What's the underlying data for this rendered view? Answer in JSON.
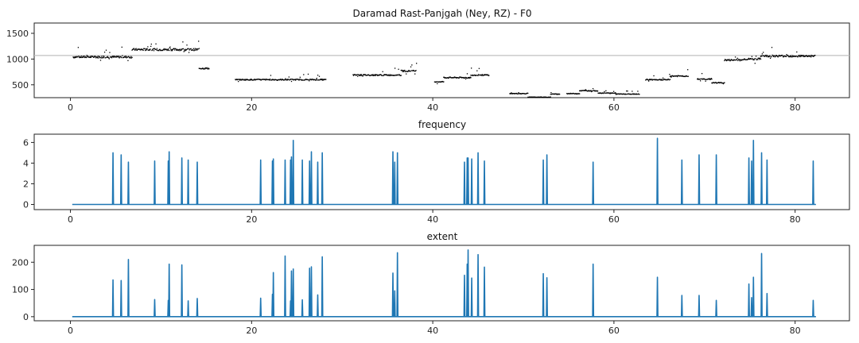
{
  "colors": {
    "series": "#1f77b4",
    "points": "#000000",
    "reference": "#c0c0c0"
  },
  "chart_data": [
    {
      "type": "scatter",
      "title": "Daramad Rast-Panjgah (Ney, RZ) - F0",
      "xlim": [
        -4,
        86
      ],
      "ylim": [
        250,
        1700
      ],
      "xticks": [
        0,
        20,
        40,
        60,
        80
      ],
      "yticks": [
        500,
        1000,
        1500
      ],
      "reference_line": 1070,
      "segments": [
        [
          0.3,
          6.8,
          1040
        ],
        [
          6.8,
          14.2,
          1185
        ],
        [
          14.2,
          15.3,
          820
        ],
        [
          18.2,
          28.2,
          600
        ],
        [
          31.2,
          36.5,
          690
        ],
        [
          36.5,
          38.2,
          770
        ],
        [
          40.2,
          41.2,
          560
        ],
        [
          41.2,
          44.2,
          640
        ],
        [
          44.2,
          46.2,
          690
        ],
        [
          48.5,
          50.5,
          330
        ],
        [
          50.5,
          53.0,
          260
        ],
        [
          53.0,
          54.0,
          320
        ],
        [
          54.8,
          56.2,
          330
        ],
        [
          56.2,
          58.2,
          385
        ],
        [
          58.2,
          60.2,
          340
        ],
        [
          60.2,
          62.8,
          320
        ],
        [
          63.5,
          66.2,
          600
        ],
        [
          66.2,
          68.2,
          670
        ],
        [
          69.2,
          70.8,
          610
        ],
        [
          70.8,
          72.2,
          540
        ],
        [
          72.2,
          74.2,
          980
        ],
        [
          74.2,
          76.2,
          1000
        ],
        [
          76.2,
          82.2,
          1060
        ]
      ]
    },
    {
      "type": "line",
      "title": "frequency",
      "xlim": [
        -4,
        86
      ],
      "ylim": [
        -0.5,
        6.8
      ],
      "xticks": [
        0,
        20,
        40,
        60,
        80
      ],
      "yticks": [
        0,
        2,
        4,
        6
      ],
      "x_range": [
        0.2,
        82.3
      ],
      "spikes": [
        [
          4.7,
          5.0
        ],
        [
          5.6,
          4.8
        ],
        [
          6.4,
          4.1
        ],
        [
          9.3,
          4.2
        ],
        [
          10.8,
          4.2
        ],
        [
          10.9,
          5.1
        ],
        [
          12.3,
          4.5
        ],
        [
          13.0,
          4.3
        ],
        [
          14.0,
          4.1
        ],
        [
          21.0,
          4.3
        ],
        [
          22.3,
          4.2
        ],
        [
          22.4,
          4.4
        ],
        [
          23.7,
          4.3
        ],
        [
          24.3,
          4.3
        ],
        [
          24.4,
          4.6
        ],
        [
          24.6,
          6.2
        ],
        [
          25.6,
          4.3
        ],
        [
          26.4,
          4.2
        ],
        [
          26.6,
          5.1
        ],
        [
          27.3,
          4.1
        ],
        [
          27.8,
          5.0
        ],
        [
          35.6,
          5.1
        ],
        [
          35.8,
          4.1
        ],
        [
          36.1,
          5.0
        ],
        [
          43.5,
          4.1
        ],
        [
          43.8,
          4.5
        ],
        [
          43.9,
          4.5
        ],
        [
          44.3,
          4.4
        ],
        [
          45.0,
          5.0
        ],
        [
          45.7,
          4.2
        ],
        [
          52.2,
          4.3
        ],
        [
          52.6,
          4.8
        ],
        [
          57.7,
          4.1
        ],
        [
          64.8,
          6.4
        ],
        [
          67.5,
          4.3
        ],
        [
          69.4,
          4.8
        ],
        [
          71.3,
          4.8
        ],
        [
          74.9,
          4.5
        ],
        [
          75.2,
          4.2
        ],
        [
          75.4,
          6.2
        ],
        [
          76.3,
          5.0
        ],
        [
          76.9,
          4.3
        ],
        [
          82.0,
          4.2
        ]
      ]
    },
    {
      "type": "line",
      "title": "extent",
      "xlim": [
        -4,
        86
      ],
      "ylim": [
        -15,
        262
      ],
      "xticks": [
        0,
        20,
        40,
        60,
        80
      ],
      "yticks": [
        0,
        100,
        200
      ],
      "x_range": [
        0.2,
        82.3
      ],
      "spikes": [
        [
          4.7,
          135
        ],
        [
          5.6,
          133
        ],
        [
          6.4,
          210
        ],
        [
          9.3,
          63
        ],
        [
          10.8,
          60
        ],
        [
          10.9,
          193
        ],
        [
          12.3,
          190
        ],
        [
          13.0,
          58
        ],
        [
          14.0,
          67
        ],
        [
          21.0,
          68
        ],
        [
          22.3,
          82
        ],
        [
          22.4,
          162
        ],
        [
          23.7,
          223
        ],
        [
          24.3,
          58
        ],
        [
          24.4,
          168
        ],
        [
          24.6,
          175
        ],
        [
          25.6,
          62
        ],
        [
          26.4,
          178
        ],
        [
          26.6,
          183
        ],
        [
          27.3,
          80
        ],
        [
          27.8,
          220
        ],
        [
          35.6,
          160
        ],
        [
          35.8,
          95
        ],
        [
          36.1,
          235
        ],
        [
          43.5,
          152
        ],
        [
          43.8,
          193
        ],
        [
          43.9,
          245
        ],
        [
          44.3,
          142
        ],
        [
          45.0,
          228
        ],
        [
          45.7,
          182
        ],
        [
          52.2,
          158
        ],
        [
          52.6,
          143
        ],
        [
          57.7,
          193
        ],
        [
          64.8,
          145
        ],
        [
          67.5,
          78
        ],
        [
          69.4,
          78
        ],
        [
          71.3,
          60
        ],
        [
          74.9,
          120
        ],
        [
          75.2,
          70
        ],
        [
          75.4,
          145
        ],
        [
          76.3,
          232
        ],
        [
          76.9,
          85
        ],
        [
          82.0,
          60
        ]
      ]
    }
  ]
}
